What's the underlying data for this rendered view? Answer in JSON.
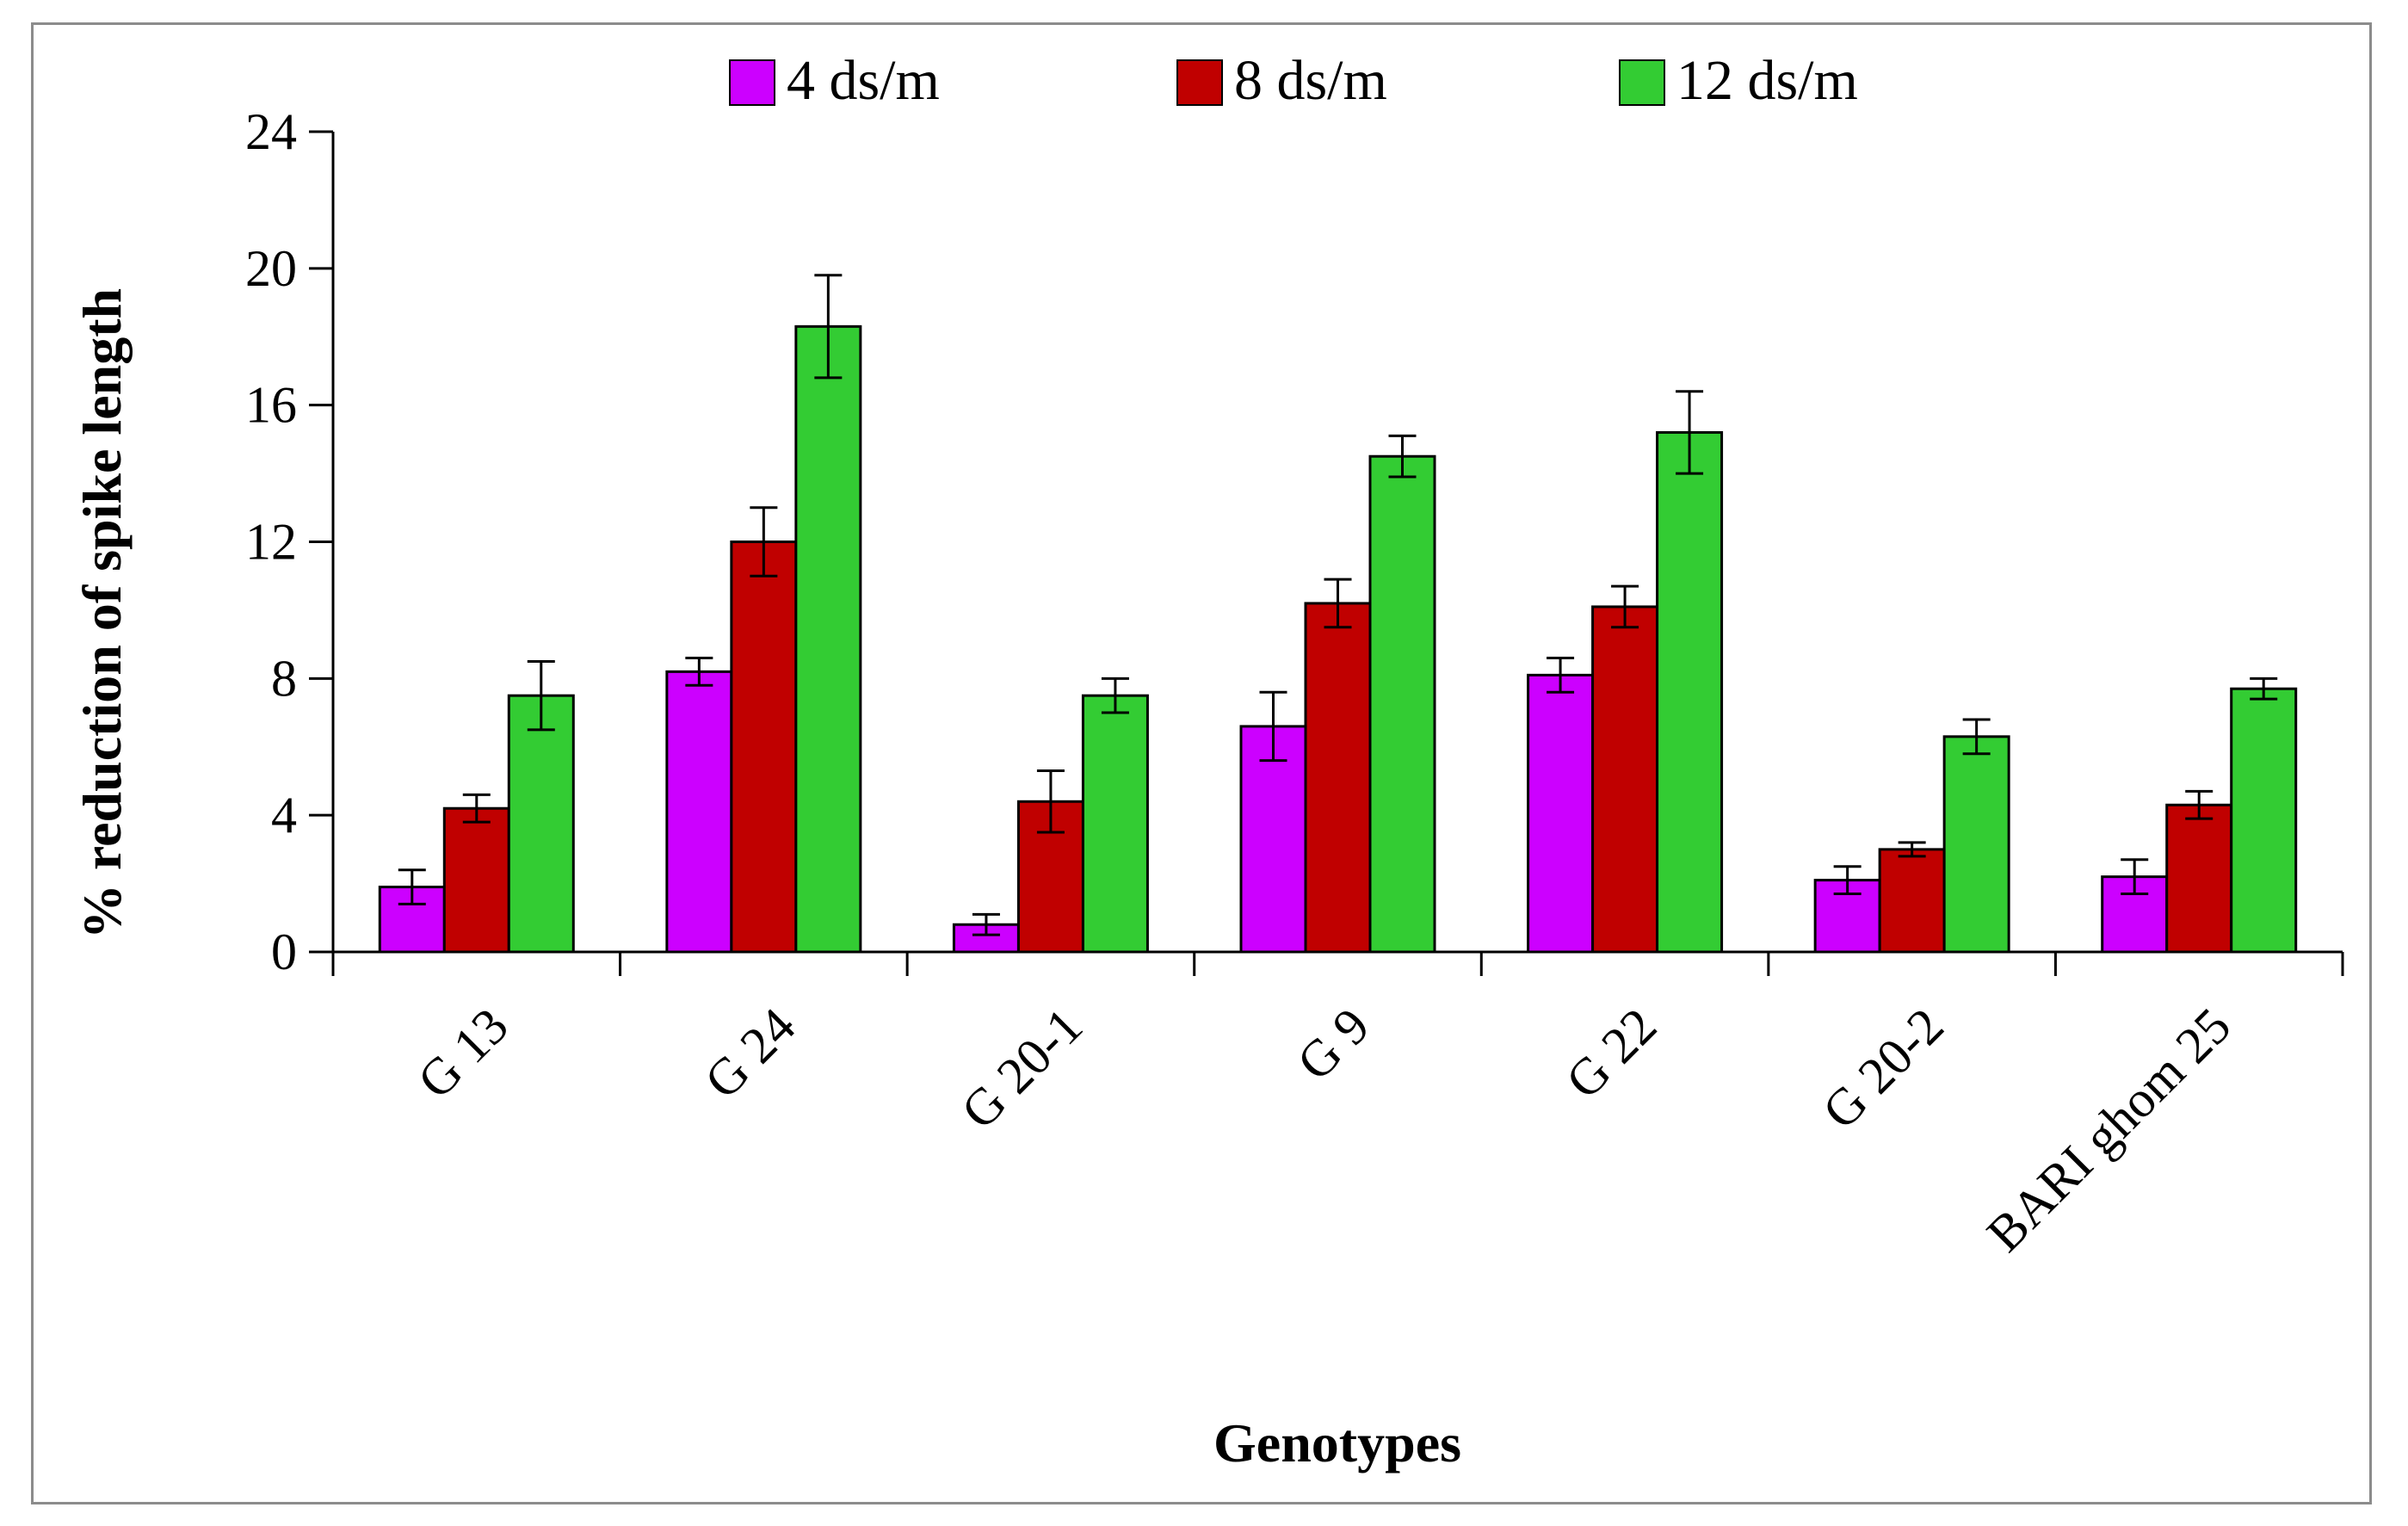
{
  "chart_data": {
    "type": "bar",
    "xlabel": "Genotypes",
    "ylabel": "% reduction of spike length",
    "ylim": [
      0,
      24
    ],
    "yticks": [
      "0",
      "4",
      "8",
      "12",
      "16",
      "20",
      "24"
    ],
    "grid": false,
    "legend_position": "top",
    "categories": [
      "G 13",
      "G 24",
      "G 20-1",
      "G 9",
      "G 22",
      "G 20-2",
      "BARI ghom 25"
    ],
    "series": [
      {
        "name": "4 ds/m",
        "color": "#cc00ff",
        "values": [
          1.9,
          8.2,
          0.8,
          6.6,
          8.1,
          2.1,
          2.2
        ],
        "errors": [
          0.5,
          0.4,
          0.3,
          1.0,
          0.5,
          0.4,
          0.5
        ]
      },
      {
        "name": "8 ds/m",
        "color": "#c00000",
        "values": [
          4.2,
          12.0,
          4.4,
          10.2,
          10.1,
          3.0,
          4.3
        ],
        "errors": [
          0.4,
          1.0,
          0.9,
          0.7,
          0.6,
          0.2,
          0.4
        ]
      },
      {
        "name": "12 ds/m",
        "color": "#33cc33",
        "values": [
          7.5,
          18.3,
          7.5,
          14.5,
          15.2,
          6.3,
          7.7
        ],
        "errors": [
          1.0,
          1.5,
          0.5,
          0.6,
          1.2,
          0.5,
          0.3
        ]
      }
    ]
  }
}
